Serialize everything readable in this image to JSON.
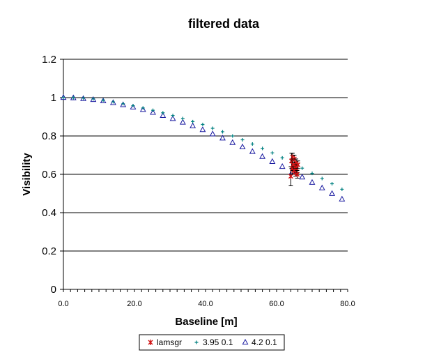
{
  "chart_data": {
    "type": "scatter",
    "title": "filtered data",
    "xlabel": "Baseline [m]",
    "ylabel": "Visibility",
    "xlim": [
      0,
      80
    ],
    "ylim": [
      0,
      1.2
    ],
    "x_ticks": [
      "0.0",
      "20.0",
      "40.0",
      "60.0",
      "80.0"
    ],
    "y_ticks": [
      "0",
      "0.2",
      "0.4",
      "0.6",
      "0.8",
      "1",
      "1.2"
    ],
    "grid": "horizontal",
    "legend_position": "bottom",
    "series": [
      {
        "name": "lamsgr",
        "marker": "star",
        "color": "#d01010",
        "points": [
          {
            "x": 64.0,
            "y": 0.59,
            "err": 0.05
          },
          {
            "x": 64.2,
            "y": 0.67,
            "err": 0.04
          },
          {
            "x": 64.4,
            "y": 0.63,
            "err": 0.03
          },
          {
            "x": 64.5,
            "y": 0.69,
            "err": 0.02
          },
          {
            "x": 64.6,
            "y": 0.65,
            "err": 0.03
          },
          {
            "x": 64.8,
            "y": 0.62,
            "err": 0.02
          },
          {
            "x": 65.0,
            "y": 0.68,
            "err": 0.02
          },
          {
            "x": 65.2,
            "y": 0.64,
            "err": 0.02
          },
          {
            "x": 65.3,
            "y": 0.61,
            "err": 0.02
          },
          {
            "x": 65.5,
            "y": 0.66,
            "err": 0.02
          },
          {
            "x": 65.6,
            "y": 0.63,
            "err": 0.02
          },
          {
            "x": 65.8,
            "y": 0.6,
            "err": 0.02
          },
          {
            "x": 66.0,
            "y": 0.65,
            "err": 0.02
          }
        ]
      },
      {
        "name": "3.95 0.1",
        "marker": "plus",
        "color": "#008080",
        "points": [
          {
            "x": 0.0,
            "y": 1.0
          },
          {
            "x": 2.8,
            "y": 0.999
          },
          {
            "x": 5.6,
            "y": 0.997
          },
          {
            "x": 8.4,
            "y": 0.993
          },
          {
            "x": 11.2,
            "y": 0.986
          },
          {
            "x": 14.0,
            "y": 0.978
          },
          {
            "x": 16.8,
            "y": 0.968
          },
          {
            "x": 19.6,
            "y": 0.958
          },
          {
            "x": 22.4,
            "y": 0.946
          },
          {
            "x": 25.2,
            "y": 0.934
          },
          {
            "x": 28.0,
            "y": 0.921
          },
          {
            "x": 30.8,
            "y": 0.907
          },
          {
            "x": 33.6,
            "y": 0.891
          },
          {
            "x": 36.4,
            "y": 0.875
          },
          {
            "x": 39.2,
            "y": 0.86
          },
          {
            "x": 42.0,
            "y": 0.84
          },
          {
            "x": 44.8,
            "y": 0.822
          },
          {
            "x": 47.6,
            "y": 0.8
          },
          {
            "x": 50.4,
            "y": 0.78
          },
          {
            "x": 53.2,
            "y": 0.758
          },
          {
            "x": 56.0,
            "y": 0.735
          },
          {
            "x": 58.8,
            "y": 0.712
          },
          {
            "x": 61.6,
            "y": 0.686
          },
          {
            "x": 64.4,
            "y": 0.66
          },
          {
            "x": 67.2,
            "y": 0.632
          },
          {
            "x": 70.0,
            "y": 0.605
          },
          {
            "x": 72.8,
            "y": 0.578
          },
          {
            "x": 75.6,
            "y": 0.551
          },
          {
            "x": 78.4,
            "y": 0.522
          }
        ]
      },
      {
        "name": "4.2 0.1",
        "marker": "triangle",
        "color": "#1a1aa0",
        "points": [
          {
            "x": 0.0,
            "y": 1.0
          },
          {
            "x": 2.8,
            "y": 0.998
          },
          {
            "x": 5.6,
            "y": 0.994
          },
          {
            "x": 8.4,
            "y": 0.989
          },
          {
            "x": 11.2,
            "y": 0.982
          },
          {
            "x": 14.0,
            "y": 0.973
          },
          {
            "x": 16.8,
            "y": 0.962
          },
          {
            "x": 19.6,
            "y": 0.95
          },
          {
            "x": 22.4,
            "y": 0.937
          },
          {
            "x": 25.2,
            "y": 0.922
          },
          {
            "x": 28.0,
            "y": 0.906
          },
          {
            "x": 30.8,
            "y": 0.89
          },
          {
            "x": 33.6,
            "y": 0.871
          },
          {
            "x": 36.4,
            "y": 0.852
          },
          {
            "x": 39.2,
            "y": 0.832
          },
          {
            "x": 42.0,
            "y": 0.81
          },
          {
            "x": 44.8,
            "y": 0.788
          },
          {
            "x": 47.6,
            "y": 0.765
          },
          {
            "x": 50.4,
            "y": 0.742
          },
          {
            "x": 53.2,
            "y": 0.718
          },
          {
            "x": 56.0,
            "y": 0.692
          },
          {
            "x": 58.8,
            "y": 0.666
          },
          {
            "x": 61.6,
            "y": 0.64
          },
          {
            "x": 64.4,
            "y": 0.613
          },
          {
            "x": 67.2,
            "y": 0.585
          },
          {
            "x": 70.0,
            "y": 0.557
          },
          {
            "x": 72.8,
            "y": 0.528
          },
          {
            "x": 75.6,
            "y": 0.499
          },
          {
            "x": 78.4,
            "y": 0.47
          }
        ]
      }
    ]
  }
}
